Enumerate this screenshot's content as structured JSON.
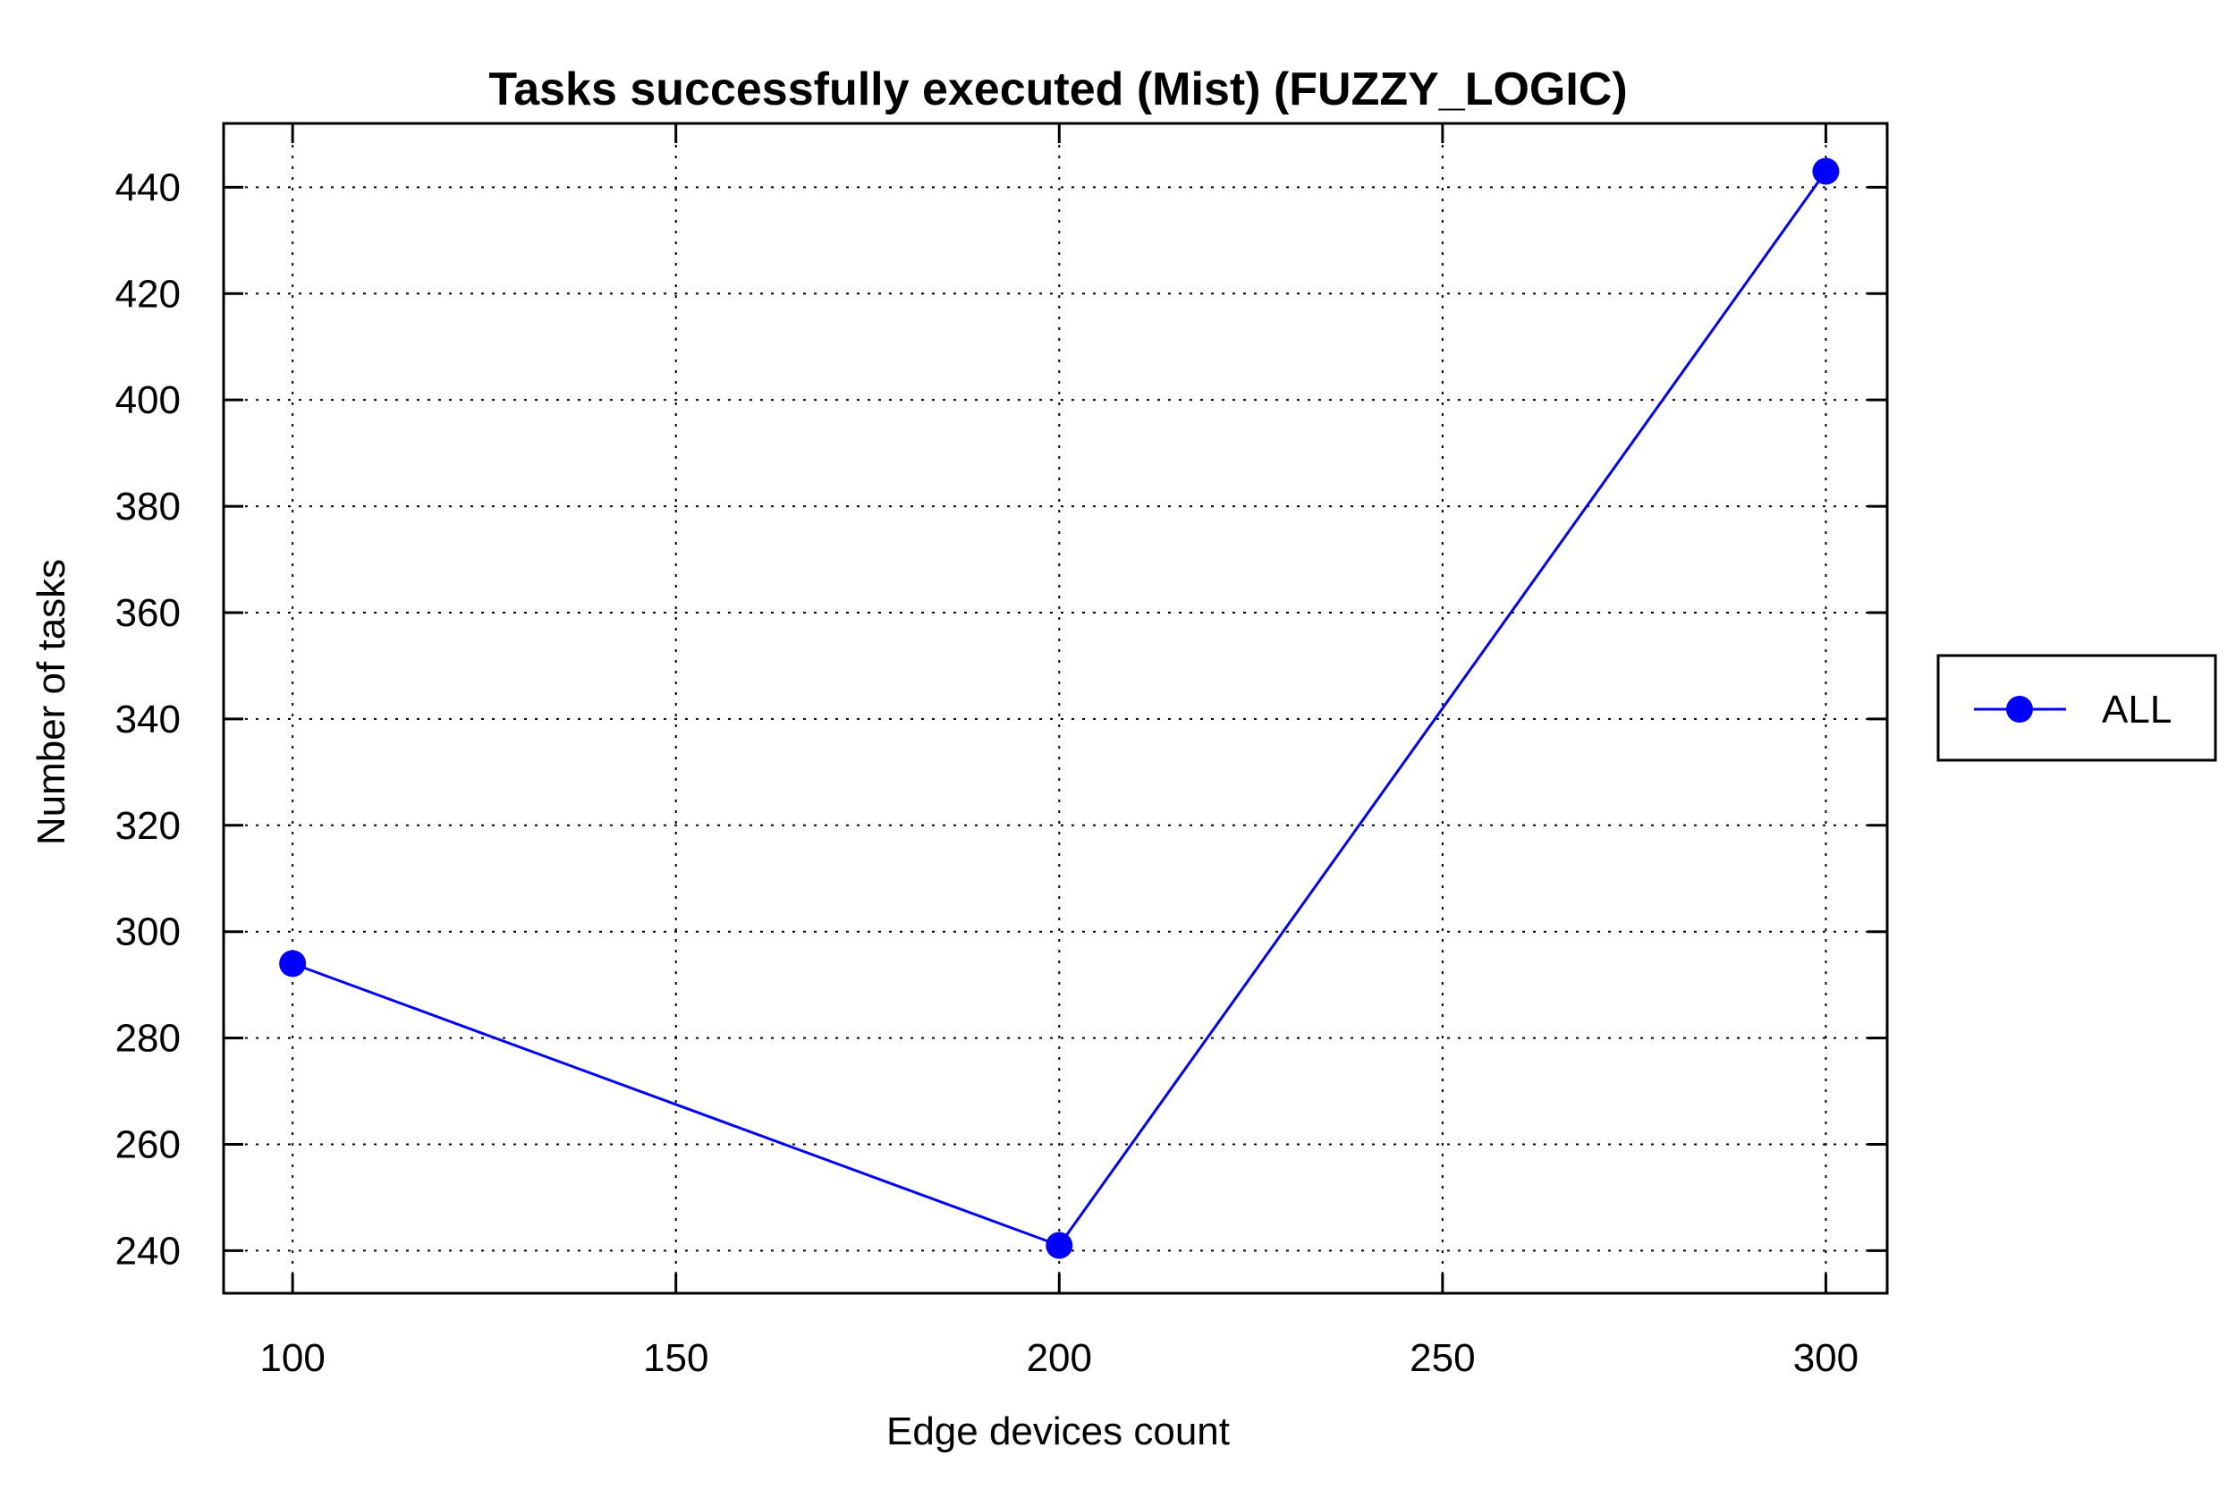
{
  "chart_data": {
    "type": "line",
    "title": "Tasks successfully executed (Mist) (FUZZY_LOGIC)",
    "xlabel": "Edge devices count",
    "ylabel": "Number of tasks",
    "x": [
      100,
      200,
      300
    ],
    "xlim": [
      91,
      308
    ],
    "ylim": [
      232,
      452
    ],
    "x_ticks": [
      "100",
      "150",
      "200",
      "250",
      "300"
    ],
    "y_ticks": [
      "240",
      "260",
      "280",
      "300",
      "320",
      "340",
      "360",
      "380",
      "400",
      "420",
      "440"
    ],
    "grid": true,
    "legend_position": "right",
    "series": [
      {
        "name": "ALL",
        "values": [
          294,
          241,
          443
        ],
        "color": "#0000ff",
        "marker": "circle"
      }
    ]
  }
}
